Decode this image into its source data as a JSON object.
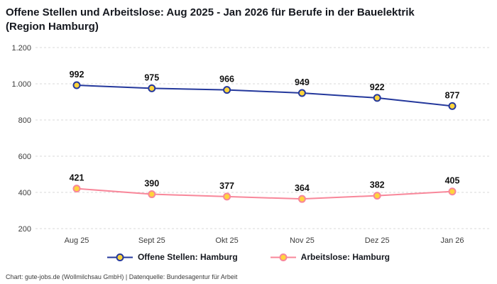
{
  "title": "Offene Stellen und Arbeitslose: Aug 2025 - Jan 2026 für Berufe in der Bauelektrik\n(Region Hamburg)",
  "footer": "Chart: gute-jobs.de (Wollmilchsau GmbH) | Datenquelle: Bundesagentur für Arbeit",
  "colors": {
    "series1": "#24389c",
    "series2": "#f8879a",
    "marker_fill": "#ffd43b",
    "grid": "#d8d8d8",
    "axis_text": "#3c3c3c",
    "label_text": "#111111"
  },
  "chart_data": {
    "type": "line",
    "title": "Offene Stellen und Arbeitslose: Aug 2025 - Jan 2026 für Berufe in der Bauelektrik (Region Hamburg)",
    "xlabel": "",
    "ylabel": "",
    "categories": [
      "Aug 25",
      "Sept 25",
      "Okt 25",
      "Nov 25",
      "Dez 25",
      "Jan 26"
    ],
    "series": [
      {
        "name": "Offene Stellen: Hamburg",
        "color": "#24389c",
        "values": [
          992,
          975,
          966,
          949,
          922,
          877
        ]
      },
      {
        "name": "Arbeitslose: Hamburg",
        "color": "#f8879a",
        "values": [
          421,
          390,
          377,
          364,
          382,
          405
        ]
      }
    ],
    "ylim": [
      200,
      1200
    ],
    "ytick_values": [
      200,
      400,
      600,
      800,
      1000,
      1200
    ],
    "ytick_labels": [
      "200",
      "400",
      "600",
      "800",
      "1.000",
      "1.200"
    ],
    "grid": "horizontal-dashed",
    "legend_position": "bottom",
    "data_labels": true
  }
}
